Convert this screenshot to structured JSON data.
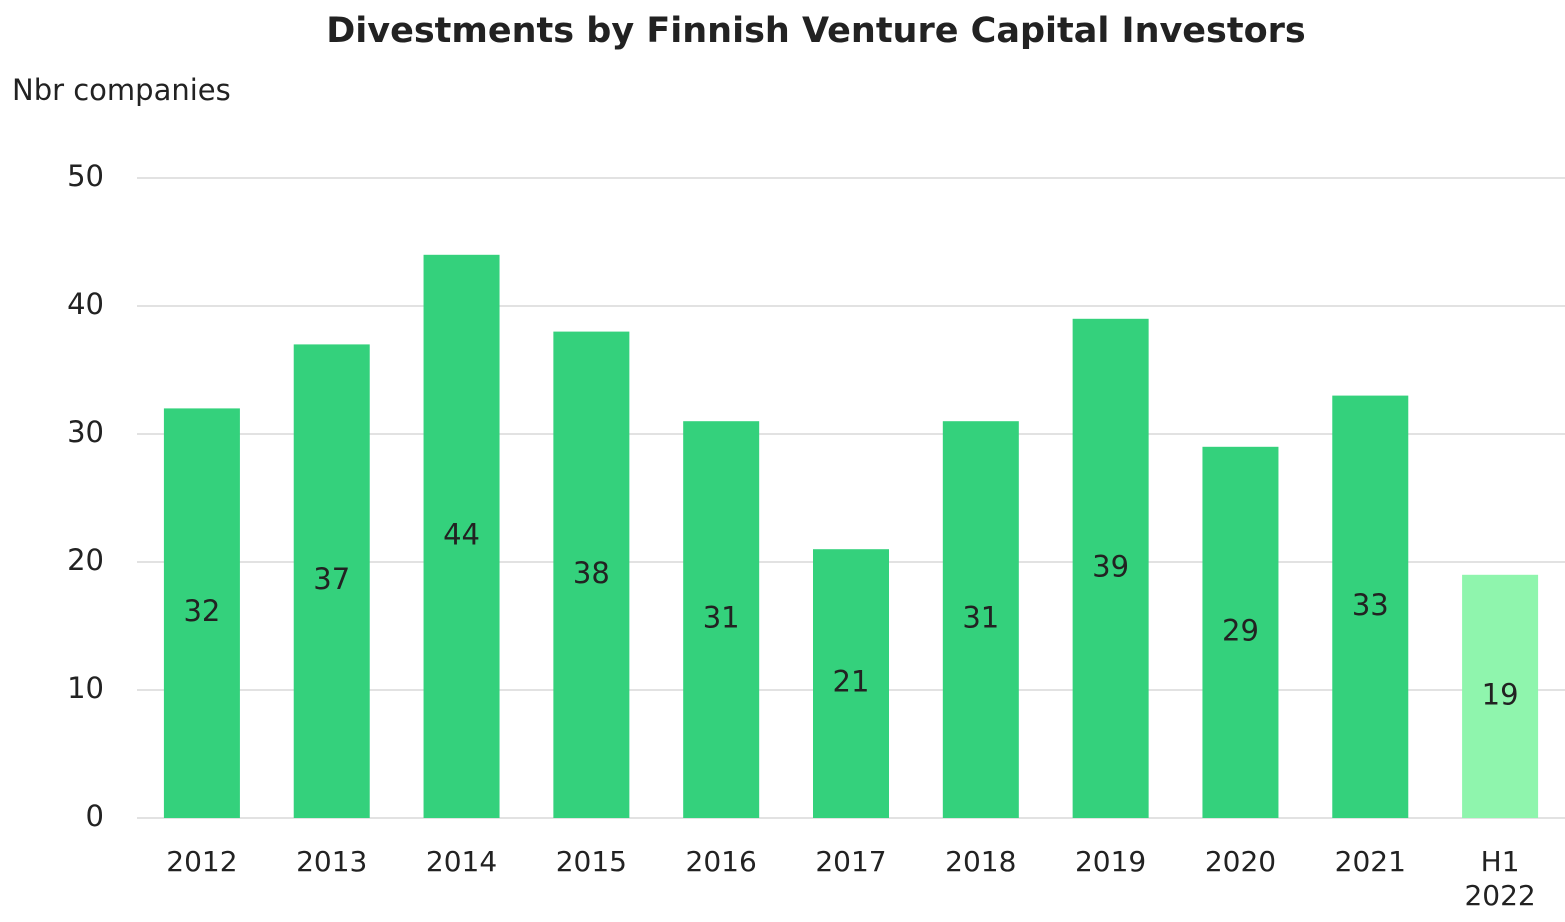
{
  "chart_data": {
    "type": "bar",
    "title": "Divestments by Finnish Venture Capital Investors",
    "y_label": "Nbr companies",
    "categories": [
      "2012",
      "2013",
      "2014",
      "2015",
      "2016",
      "2017",
      "2018",
      "2019",
      "2020",
      "2021",
      "H1 2022"
    ],
    "values": [
      32,
      37,
      44,
      38,
      31,
      21,
      31,
      39,
      29,
      33,
      19
    ],
    "colors": [
      "#34d17c",
      "#34d17c",
      "#34d17c",
      "#34d17c",
      "#34d17c",
      "#34d17c",
      "#34d17c",
      "#34d17c",
      "#34d17c",
      "#34d17c",
      "#8ff5ad"
    ],
    "ylim": [
      0,
      50
    ],
    "yticks": [
      0,
      10,
      20,
      30,
      40,
      50
    ],
    "grid": true
  }
}
